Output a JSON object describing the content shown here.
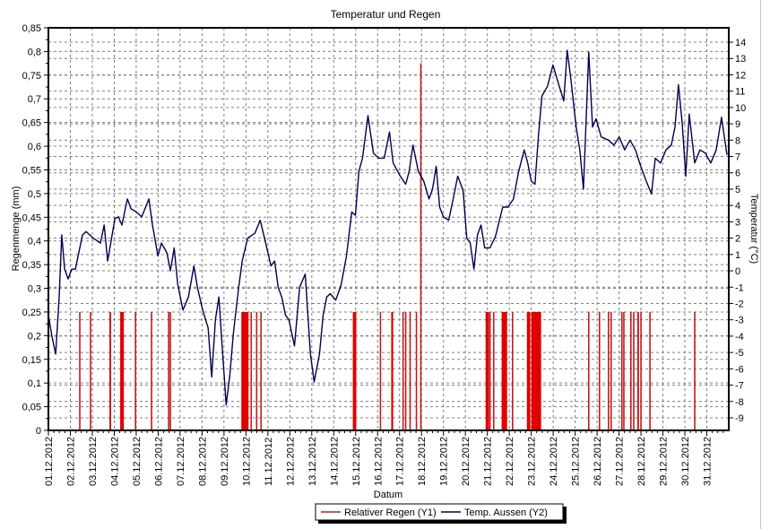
{
  "chart_data": {
    "type": "bar+line",
    "title": "Temperatur und Regen",
    "xlabel": "Datum",
    "ylabel": "Regenmenge (mm)",
    "y2label": "Temperatur (°C)",
    "x_unit": "days since 01.12.2012 00:00",
    "xlim": [
      0,
      31
    ],
    "ylim": [
      0,
      0.85
    ],
    "y2lim": [
      -9.77,
      14.88
    ],
    "grid": true,
    "legend_position": "bottom-center",
    "x_tick_labels": [
      "01.12.2012",
      "02.12.2012",
      "03.12.2012",
      "04.12.2012",
      "05.12.2012",
      "06.12.2012",
      "07.12.2012",
      "08.12.2012",
      "09.12.2012",
      "10.12.2012",
      "11.12.2012",
      "12.12.2012",
      "13.12.2012",
      "14.12.2012",
      "15.12.2012",
      "16.12.2012",
      "17.12.2012",
      "18.12.2012",
      "19.12.2012",
      "20.12.2012",
      "21.12.2012",
      "22.12.2012",
      "23.12.2012",
      "24.12.2012",
      "25.12.2012",
      "26.12.2012",
      "27.12.2012",
      "28.12.2012",
      "29.12.2012",
      "30.12.2012",
      "31.12.2012"
    ],
    "y_tick_labels": [
      "0",
      "0,05",
      "0,1",
      "0,15",
      "0,2",
      "0,25",
      "0,3",
      "0,35",
      "0,4",
      "0,45",
      "0,5",
      "0,55",
      "0,6",
      "0,65",
      "0,7",
      "0,75",
      "0,8",
      "0,85"
    ],
    "y2_tick_labels": [
      "-9",
      "-8",
      "-7",
      "-6",
      "-5",
      "-4",
      "-3",
      "-2",
      "-1",
      "0",
      "1",
      "2",
      "3",
      "4",
      "5",
      "6",
      "7",
      "8",
      "9",
      "10",
      "11",
      "12",
      "13",
      "14"
    ],
    "colors": {
      "rain": "#e00000",
      "temp": "#000050",
      "grid": "#808080"
    },
    "series": [
      {
        "name": "Relativer Regen (Y1)",
        "axis": "y",
        "type": "bar",
        "bars": [
          [
            1.43,
            1.43,
            0.25
          ],
          [
            1.92,
            1.92,
            0.25
          ],
          [
            2.78,
            2.86,
            0.25
          ],
          [
            3.27,
            3.44,
            0.25
          ],
          [
            3.97,
            3.97,
            0.25
          ],
          [
            4.7,
            4.7,
            0.25
          ],
          [
            5.48,
            5.48,
            0.25
          ],
          [
            5.56,
            5.56,
            0.25
          ],
          [
            8.79,
            9.12,
            0.25
          ],
          [
            9.24,
            9.24,
            0.25
          ],
          [
            9.49,
            9.49,
            0.25
          ],
          [
            9.69,
            9.69,
            0.25
          ],
          [
            13.87,
            14.03,
            0.25
          ],
          [
            15.13,
            15.13,
            0.25
          ],
          [
            15.62,
            15.71,
            0.25
          ],
          [
            16.16,
            16.2,
            0.25
          ],
          [
            16.28,
            16.32,
            0.25
          ],
          [
            16.48,
            16.52,
            0.25
          ],
          [
            16.77,
            16.77,
            0.25
          ],
          [
            16.97,
            16.97,
            0.775
          ],
          [
            19.92,
            20.08,
            0.25
          ],
          [
            20.12,
            20.16,
            0.25
          ],
          [
            20.29,
            20.33,
            0.25
          ],
          [
            20.65,
            20.9,
            0.25
          ],
          [
            21.15,
            21.15,
            0.25
          ],
          [
            21.8,
            21.96,
            0.25
          ],
          [
            22.0,
            22.45,
            0.25
          ],
          [
            24.62,
            24.66,
            0.25
          ],
          [
            25.11,
            25.11,
            0.25
          ],
          [
            25.52,
            25.52,
            0.25
          ],
          [
            25.64,
            25.68,
            0.25
          ],
          [
            26.13,
            26.13,
            0.25
          ],
          [
            26.22,
            26.22,
            0.25
          ],
          [
            26.54,
            26.54,
            0.25
          ],
          [
            26.67,
            26.67,
            0.25
          ],
          [
            26.83,
            26.91,
            0.25
          ],
          [
            27.0,
            27.0,
            0.25
          ],
          [
            27.41,
            27.41,
            0.25
          ],
          [
            29.45,
            29.45,
            0.25
          ]
        ]
      },
      {
        "name": "Temp. Aussen (Y2)",
        "axis": "y2",
        "type": "line",
        "points": [
          [
            0,
            -2.7
          ],
          [
            0.16,
            -4.0
          ],
          [
            0.33,
            -5.1
          ],
          [
            0.49,
            -1.6
          ],
          [
            0.61,
            2.2
          ],
          [
            0.74,
            0.1
          ],
          [
            0.9,
            -0.5
          ],
          [
            1.06,
            0.1
          ],
          [
            1.23,
            0.1
          ],
          [
            1.55,
            2.2
          ],
          [
            1.72,
            2.4
          ],
          [
            2.04,
            2.0
          ],
          [
            2.37,
            1.7
          ],
          [
            2.54,
            2.8
          ],
          [
            2.7,
            0.6
          ],
          [
            3.03,
            3.2
          ],
          [
            3.19,
            3.3
          ],
          [
            3.35,
            2.8
          ],
          [
            3.6,
            4.4
          ],
          [
            3.76,
            3.8
          ],
          [
            4.01,
            3.6
          ],
          [
            4.25,
            3.3
          ],
          [
            4.58,
            4.4
          ],
          [
            4.74,
            2.8
          ],
          [
            4.99,
            0.9
          ],
          [
            5.15,
            1.7
          ],
          [
            5.4,
            1.1
          ],
          [
            5.56,
            0
          ],
          [
            5.73,
            1.4
          ],
          [
            5.89,
            -0.8
          ],
          [
            6.13,
            -2.4
          ],
          [
            6.38,
            -1.6
          ],
          [
            6.63,
            0.3
          ],
          [
            6.79,
            -1.0
          ],
          [
            7.03,
            -2.4
          ],
          [
            7.28,
            -3.5
          ],
          [
            7.44,
            -6.5
          ],
          [
            7.61,
            -3.0
          ],
          [
            7.77,
            -1.6
          ],
          [
            7.93,
            -4.9
          ],
          [
            8.1,
            -8.2
          ],
          [
            8.26,
            -6.5
          ],
          [
            8.43,
            -3.8
          ],
          [
            8.67,
            -1.0
          ],
          [
            8.83,
            0.6
          ],
          [
            9.08,
            2.0
          ],
          [
            9.41,
            2.3
          ],
          [
            9.65,
            3.1
          ],
          [
            9.9,
            1.7
          ],
          [
            10.14,
            0.3
          ],
          [
            10.31,
            0.6
          ],
          [
            10.47,
            -1.0
          ],
          [
            10.63,
            -1.6
          ],
          [
            10.8,
            -2.7
          ],
          [
            10.96,
            -3.0
          ],
          [
            11.21,
            -4.6
          ],
          [
            11.45,
            -1.0
          ],
          [
            11.7,
            -0.2
          ],
          [
            11.94,
            -5.1
          ],
          [
            12.11,
            -6.8
          ],
          [
            12.35,
            -5.1
          ],
          [
            12.52,
            -2.7
          ],
          [
            12.68,
            -1.6
          ],
          [
            12.84,
            -1.4
          ],
          [
            13.09,
            -1.8
          ],
          [
            13.33,
            -0.9
          ],
          [
            13.58,
            0.9
          ],
          [
            13.82,
            3.6
          ],
          [
            13.99,
            3.4
          ],
          [
            14.15,
            6.1
          ],
          [
            14.31,
            6.9
          ],
          [
            14.56,
            9.5
          ],
          [
            14.81,
            7.2
          ],
          [
            15.05,
            6.9
          ],
          [
            15.3,
            6.9
          ],
          [
            15.54,
            8.5
          ],
          [
            15.71,
            6.6
          ],
          [
            16.03,
            5.8
          ],
          [
            16.28,
            5.3
          ],
          [
            16.44,
            6.1
          ],
          [
            16.61,
            7.7
          ],
          [
            16.85,
            6.1
          ],
          [
            17.1,
            5.5
          ],
          [
            17.34,
            4.4
          ],
          [
            17.5,
            5.0
          ],
          [
            17.67,
            6.4
          ],
          [
            17.83,
            3.9
          ],
          [
            18.0,
            3.3
          ],
          [
            18.24,
            3.1
          ],
          [
            18.49,
            4.7
          ],
          [
            18.65,
            5.8
          ],
          [
            18.9,
            4.9
          ],
          [
            19.06,
            2.0
          ],
          [
            19.22,
            1.7
          ],
          [
            19.39,
            0.1
          ],
          [
            19.55,
            2.2
          ],
          [
            19.71,
            2.8
          ],
          [
            19.88,
            1.4
          ],
          [
            20.12,
            1.4
          ],
          [
            20.37,
            2.1
          ],
          [
            20.7,
            3.9
          ],
          [
            20.94,
            3.9
          ],
          [
            21.19,
            4.4
          ],
          [
            21.43,
            6.1
          ],
          [
            21.68,
            7.4
          ],
          [
            21.84,
            6.6
          ],
          [
            22.0,
            5.5
          ],
          [
            22.17,
            5.3
          ],
          [
            22.33,
            8.3
          ],
          [
            22.49,
            10.7
          ],
          [
            22.74,
            11.3
          ],
          [
            22.99,
            12.6
          ],
          [
            23.23,
            11.5
          ],
          [
            23.48,
            10.4
          ],
          [
            23.64,
            13.5
          ],
          [
            23.8,
            11.8
          ],
          [
            24.05,
            8.8
          ],
          [
            24.21,
            7.4
          ],
          [
            24.38,
            5.0
          ],
          [
            24.62,
            13.4
          ],
          [
            24.79,
            8.8
          ],
          [
            24.95,
            9.3
          ],
          [
            25.19,
            8.2
          ],
          [
            25.52,
            8.0
          ],
          [
            25.77,
            7.7
          ],
          [
            26.01,
            8.2
          ],
          [
            26.26,
            7.4
          ],
          [
            26.5,
            8.0
          ],
          [
            26.75,
            7.4
          ],
          [
            26.99,
            6.4
          ],
          [
            27.24,
            5.5
          ],
          [
            27.48,
            4.7
          ],
          [
            27.65,
            6.9
          ],
          [
            27.89,
            6.6
          ],
          [
            28.14,
            7.4
          ],
          [
            28.38,
            7.7
          ],
          [
            28.55,
            8.8
          ],
          [
            28.71,
            11.4
          ],
          [
            28.88,
            9.0
          ],
          [
            29.04,
            5.8
          ],
          [
            29.2,
            9.6
          ],
          [
            29.45,
            6.6
          ],
          [
            29.69,
            7.4
          ],
          [
            29.94,
            7.2
          ],
          [
            30.18,
            6.6
          ],
          [
            30.43,
            7.4
          ],
          [
            30.67,
            9.4
          ],
          [
            30.92,
            7.1
          ]
        ]
      }
    ]
  }
}
